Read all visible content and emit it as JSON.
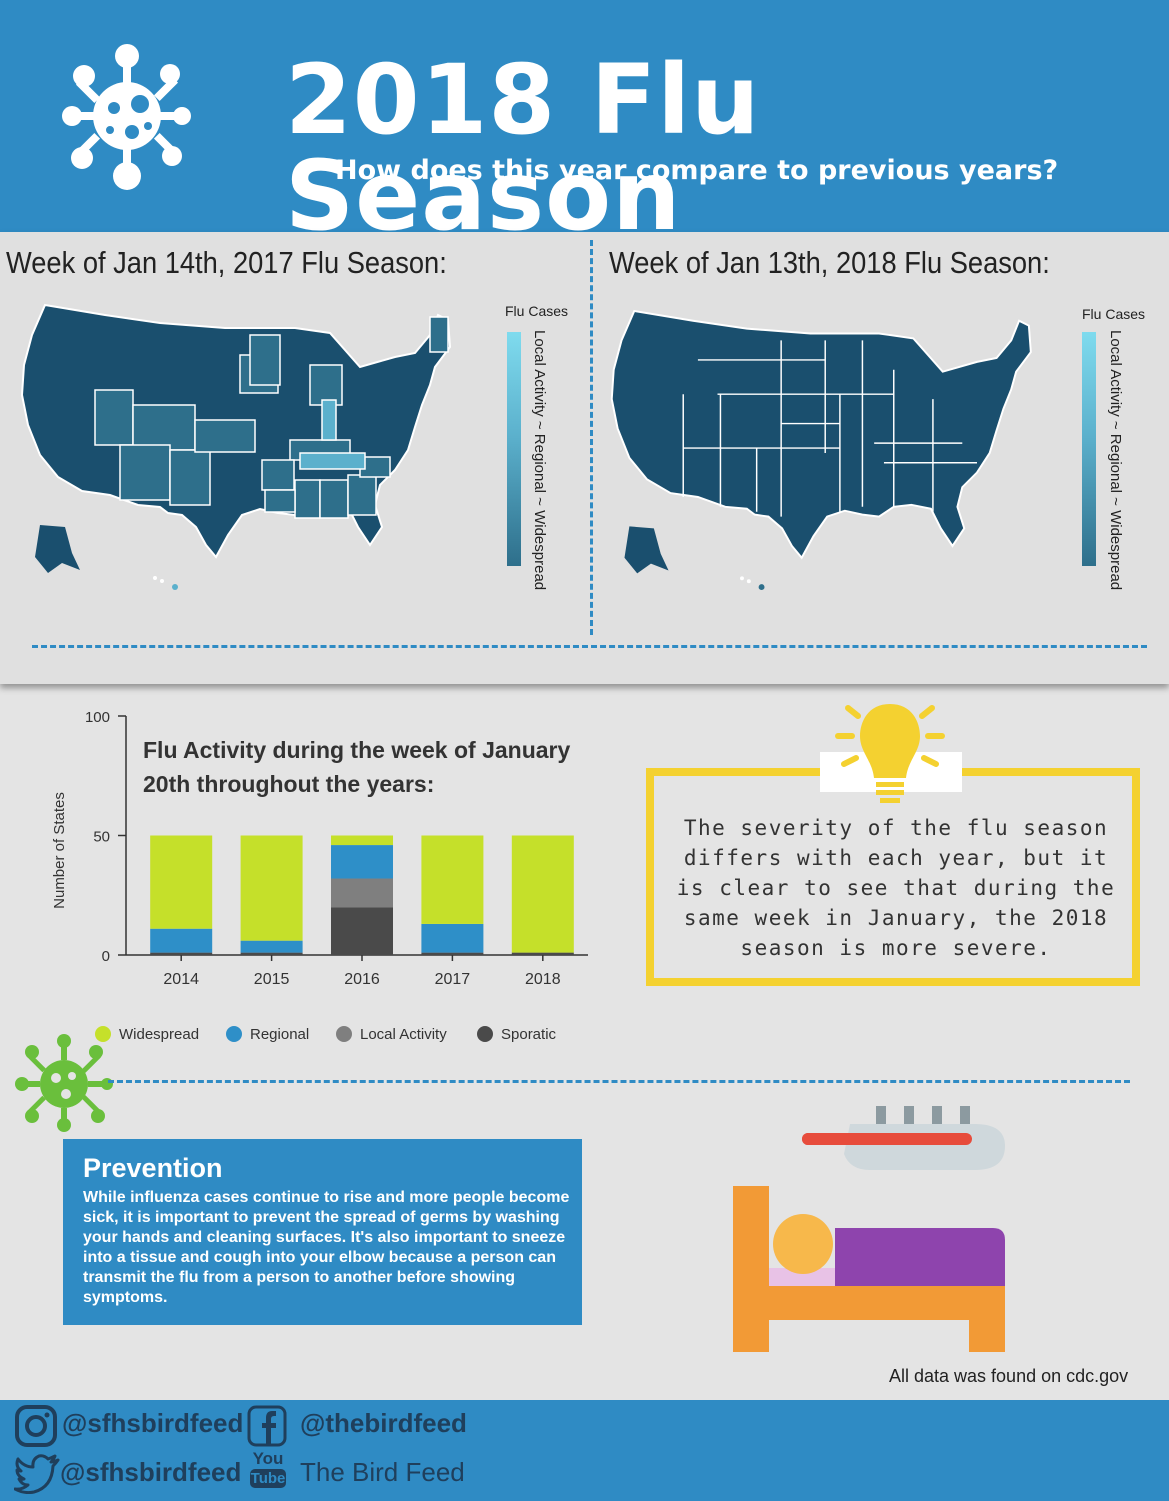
{
  "header": {
    "title": "2018 Flu Season",
    "subtitle": "How does this year compare to previous years?",
    "icon": "virus-icon"
  },
  "maps": [
    {
      "title": "Week of Jan 14th, 2017 Flu Season:",
      "legend_title": "Flu Cases",
      "legend_scale": "Local Activity ~ Regional ~ Widespread"
    },
    {
      "title": "Week of Jan 13th, 2018 Flu Season:",
      "legend_title": "Flu Cases",
      "legend_scale": "Local Activity ~ Regional ~ Widespread"
    }
  ],
  "colors": {
    "header_blue": "#2f8bc4",
    "widespread": "#c5e02a",
    "regional": "#2e8fc8",
    "local_activity": "#7f7f7f",
    "sporatic": "#4a4a4a",
    "map_dark": "#1a4f6e",
    "callout_border": "#f4d130"
  },
  "chart_data": {
    "type": "bar",
    "stacked": true,
    "title": "Flu Activity during the week of January 20th throughout the years:",
    "xlabel": "",
    "ylabel": "Number of States",
    "ylim": [
      0,
      100
    ],
    "yticks": [
      0,
      50,
      100
    ],
    "categories": [
      "2014",
      "2015",
      "2016",
      "2017",
      "2018"
    ],
    "series": [
      {
        "name": "Sporatic",
        "key": "sporatic",
        "values": [
          1,
          1,
          20,
          1,
          1
        ]
      },
      {
        "name": "Local Activity",
        "key": "local_activity",
        "values": [
          0,
          0,
          12,
          0,
          0
        ]
      },
      {
        "name": "Regional",
        "key": "regional",
        "values": [
          10,
          5,
          14,
          12,
          0
        ]
      },
      {
        "name": "Widespread",
        "key": "widespread",
        "values": [
          39,
          44,
          4,
          37,
          49
        ]
      }
    ],
    "legend": [
      "Widespread",
      "Regional",
      "Local Activity",
      "Sporatic"
    ],
    "legend_position": "bottom"
  },
  "callout": {
    "text": "The severity of the flu season differs with each year, but it is clear to see that during the same week in January, the 2018 season is more severe."
  },
  "prevention": {
    "title": "Prevention",
    "body": "While influenza cases continue to rise and more people become sick, it is important to prevent the spread of germs by washing your hands and cleaning surfaces. It's also important to sneeze into a tissue and cough into your elbow because a person can transmit the flu from a person to another before showing symptoms."
  },
  "source": "All data was found on cdc.gov",
  "footer": {
    "instagram": "@sfhsbirdfeed",
    "facebook": "@thebirdfeed",
    "twitter": "@sfhsbirdfeed",
    "youtube": "The Bird Feed",
    "youtube_logo_top": "You",
    "youtube_logo_bottom": "Tube"
  }
}
